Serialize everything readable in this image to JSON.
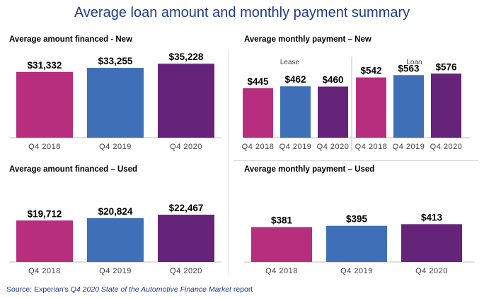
{
  "title": "Average loan amount and monthly payment summary",
  "source": {
    "prefix": "Source: Experian's ",
    "italic": "Q4 2020 State of the Automotive Finance Market",
    "suffix": " report"
  },
  "colors": {
    "q4_2018": "#b82e7f",
    "q4_2019": "#3e6fb7",
    "q4_2020": "#66237a",
    "axis": "#bfbfbf"
  },
  "chart_data": [
    {
      "id": "financed-new",
      "type": "bar",
      "title": "Average amount financed - New",
      "categories": [
        "Q4 2018",
        "Q4 2019",
        "Q4 2020"
      ],
      "values": [
        31332,
        33255,
        35228
      ],
      "value_labels": [
        "$31,332",
        "$33,255",
        "$35,228"
      ],
      "ylim": [
        0,
        40000
      ]
    },
    {
      "id": "payment-new",
      "type": "bar",
      "title": "Average monthly  payment – New",
      "groups": [
        {
          "name": "Lease",
          "categories": [
            "Q4 2018",
            "Q4 2019",
            "Q4 2020"
          ],
          "values": [
            445,
            462,
            460
          ],
          "value_labels": [
            "$445",
            "$462",
            "$460"
          ]
        },
        {
          "name": "Loan",
          "categories": [
            "Q4 2018",
            "Q4 2019",
            "Q4 2020"
          ],
          "values": [
            542,
            563,
            576
          ],
          "value_labels": [
            "$542",
            "$563",
            "$576"
          ]
        }
      ],
      "ylim": [
        0,
        730
      ]
    },
    {
      "id": "financed-used",
      "type": "bar",
      "title": "Average amount financed – Used",
      "categories": [
        "Q4 2018",
        "Q4 2019",
        "Q4 2020"
      ],
      "values": [
        19712,
        20824,
        22467
      ],
      "value_labels": [
        "$19,712",
        "$20,824",
        "$22,467"
      ],
      "ylim": [
        0,
        25500
      ]
    },
    {
      "id": "payment-used",
      "type": "bar",
      "title": "Average monthly  payment – Used",
      "categories": [
        "Q4 2018",
        "Q4 2019",
        "Q4 2020"
      ],
      "values": [
        381,
        395,
        413
      ],
      "value_labels": [
        "$381",
        "$395",
        "$413"
      ],
      "ylim": [
        0,
        470
      ]
    }
  ]
}
